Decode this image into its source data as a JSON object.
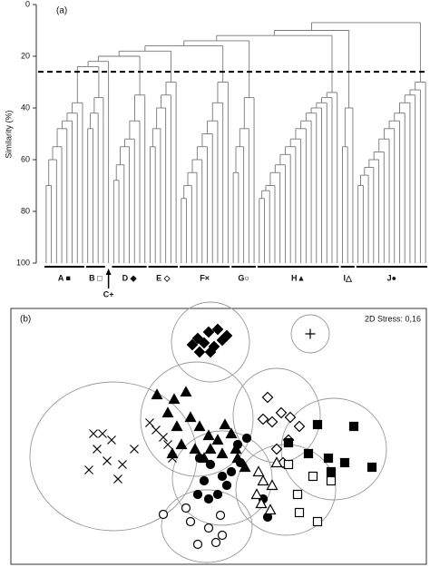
{
  "chart_data": [
    {
      "type": "dendrogram",
      "panel_label": "(a)",
      "y_label": "Similarity (%)",
      "ylim": [
        0,
        100
      ],
      "yticks": [
        0,
        20,
        40,
        60,
        80,
        100
      ],
      "cutoff": 26,
      "groups": [
        {
          "label": "A ■",
          "merges": [
            70,
            60,
            55,
            48,
            45,
            42,
            38
          ],
          "root": 35
        },
        {
          "label": "B □",
          "merges": [
            48,
            42,
            36
          ],
          "root": 30,
          "join": 24
        },
        {
          "label": "C+",
          "merges": [],
          "root": 45,
          "join": 22,
          "arrow": true
        },
        {
          "label": "D ◆",
          "merges": [
            68,
            62,
            55,
            52,
            45,
            35
          ],
          "root": 32,
          "join": 20
        },
        {
          "label": "E ◇",
          "merges": [
            55,
            48,
            40,
            35,
            30
          ],
          "root": 28,
          "join": 18
        },
        {
          "label": "F×",
          "merges": [
            75,
            70,
            65,
            60,
            55,
            50,
            45,
            38,
            30
          ],
          "root": 28,
          "join": 16
        },
        {
          "label": "G○",
          "merges": [
            65,
            55,
            48,
            36
          ],
          "root": 30,
          "join": 14
        },
        {
          "label": "H▲",
          "merges": [
            75,
            72,
            70,
            65,
            62,
            58,
            55,
            52,
            48,
            45,
            42,
            40,
            38,
            36,
            34
          ],
          "root": 32,
          "join": 12
        },
        {
          "label": "I△",
          "merges": [
            55,
            40
          ],
          "root": 27,
          "join": 10
        },
        {
          "label": "J●",
          "merges": [
            70,
            66,
            63,
            60,
            57,
            52,
            48,
            45,
            42,
            38,
            35,
            33,
            30
          ],
          "root": 27,
          "join": 7
        }
      ]
    },
    {
      "type": "scatter",
      "panel_label": "(b)",
      "annotation": "2D Stress: 0,16",
      "xlim": [
        0,
        458
      ],
      "ylim": [
        0,
        282
      ],
      "series": [
        {
          "marker": "diamond-filled",
          "color": "#000",
          "x": [
            206,
            218,
            228,
            200,
            213,
            224,
            220,
            233,
            208,
            238
          ],
          "y": [
            249,
            256,
            259,
            242,
            244,
            240,
            234,
            247,
            234,
            252
          ]
        },
        {
          "marker": "plus",
          "color": "#000",
          "x": [
            330
          ],
          "y": [
            254
          ]
        },
        {
          "marker": "cross",
          "color": "#000",
          "x": [
            91,
            101,
            111,
            95,
            106,
            86,
            123,
            136,
            118,
            153,
            160,
            168,
            173,
            178
          ],
          "y": [
            144,
            144,
            137,
            127,
            114,
            104,
            110,
            127,
            94,
            156,
            148,
            140,
            132,
            117
          ]
        },
        {
          "marker": "triangle-filled",
          "color": "#000",
          "x": [
            161,
            180,
            193,
            173,
            183,
            198,
            208,
            218,
            228,
            236,
            243,
            178,
            188,
            203,
            213,
            248,
            250,
            258,
            220,
            233
          ],
          "y": [
            187,
            182,
            190,
            167,
            152,
            162,
            152,
            142,
            137,
            154,
            144,
            122,
            132,
            127,
            117,
            127,
            117,
            107,
            127,
            122
          ]
        },
        {
          "marker": "circle-filled",
          "color": "#000",
          "x": [
            208,
            220,
            233,
            243,
            250,
            260,
            213,
            228,
            218,
            206,
            238,
            278,
            283,
            253
          ],
          "y": [
            117,
            110,
            97,
            102,
            132,
            139,
            92,
            77,
            72,
            77,
            87,
            72,
            52,
            112
          ]
        },
        {
          "marker": "diamond-open",
          "color": "#000",
          "x": [
            283,
            298,
            288,
            308,
            318,
            306,
            293,
            300,
            278
          ],
          "y": [
            184,
            167,
            157,
            162,
            152,
            137,
            127,
            112,
            160
          ]
        },
        {
          "marker": "square-filled",
          "color": "#000",
          "x": [
            306,
            338,
            378,
            350,
            368,
            353,
            398,
            328
          ],
          "y": [
            134,
            154,
            152,
            117,
            112,
            102,
            107,
            122
          ]
        },
        {
          "marker": "triangle-open",
          "color": "#000",
          "x": [
            273,
            278,
            288,
            271,
            293,
            276,
            286
          ],
          "y": [
            102,
            92,
            87,
            77,
            112,
            67,
            60
          ]
        },
        {
          "marker": "square-open",
          "color": "#000",
          "x": [
            306,
            333,
            353,
            316,
            318,
            338
          ],
          "y": [
            110,
            97,
            92,
            77,
            57,
            47
          ]
        },
        {
          "marker": "circle-open",
          "color": "#000",
          "x": [
            168,
            193,
            198,
            218,
            231,
            233,
            206,
            226
          ],
          "y": [
            55,
            62,
            47,
            40,
            54,
            32,
            22,
            24
          ]
        }
      ]
    }
  ]
}
